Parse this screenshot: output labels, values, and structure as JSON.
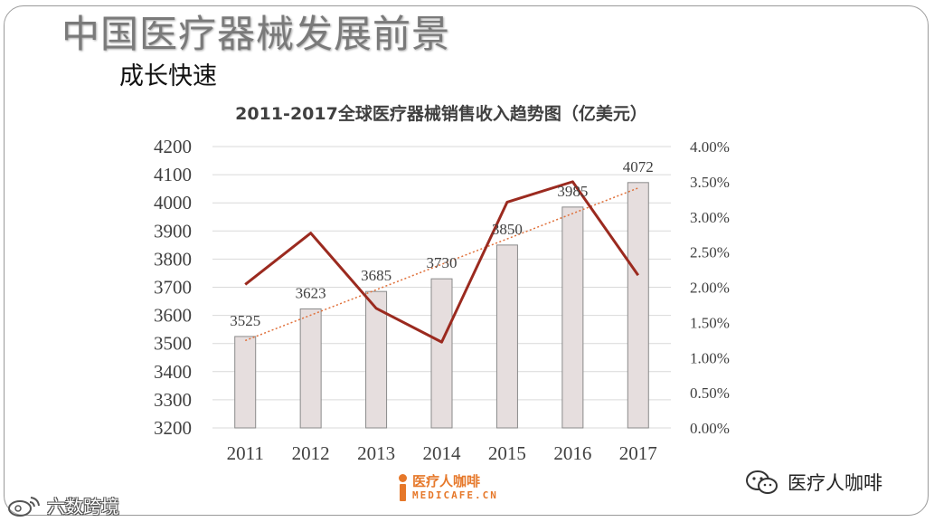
{
  "slide": {
    "title": "中国医疗器械发展前景",
    "subtitle": "成长快速"
  },
  "logo": {
    "cn": "医疗人咖啡",
    "en": "MEDICAFE.CN"
  },
  "wechat": {
    "label": "医疗人咖啡",
    "icon": "wechat-icon"
  },
  "watermark": {
    "label": "六数跨境",
    "icon": "weibo-icon"
  },
  "colors": {
    "bar_fill": "#e6dede",
    "bar_stroke": "#8a8a8a",
    "line": "#9b2a1f",
    "trend": "#e0703a",
    "grid": "#d9d9d9",
    "text": "#404040"
  },
  "chart_data": {
    "type": "bar",
    "title": "2011-2017全球医疗器械销售收入趋势图（亿美元）",
    "categories": [
      "2011",
      "2012",
      "2013",
      "2014",
      "2015",
      "2016",
      "2017"
    ],
    "series": [
      {
        "type": "bar",
        "values": [
          3525,
          3623,
          3685,
          3730,
          3850,
          3985,
          4072
        ],
        "data_labels": [
          "3525",
          "3623",
          "3685",
          "3730",
          "3850",
          "3985",
          "4072"
        ]
      },
      {
        "type": "line",
        "axis": "right",
        "values": [
          0.0204,
          0.0277,
          0.017,
          0.0122,
          0.0321,
          0.035,
          0.0217
        ]
      },
      {
        "type": "trendline",
        "style": "dotted",
        "of_series": 0
      }
    ],
    "ylim": [
      3200,
      4200
    ],
    "yticks": [
      "3200",
      "3300",
      "3400",
      "3500",
      "3600",
      "3700",
      "3800",
      "3900",
      "4000",
      "4100",
      "4200"
    ],
    "y2lim": [
      0,
      0.04
    ],
    "y2ticks": [
      "0.00%",
      "0.50%",
      "1.00%",
      "1.50%",
      "2.00%",
      "2.50%",
      "3.00%",
      "3.50%",
      "4.00%"
    ],
    "grid": true,
    "legend": "none"
  }
}
